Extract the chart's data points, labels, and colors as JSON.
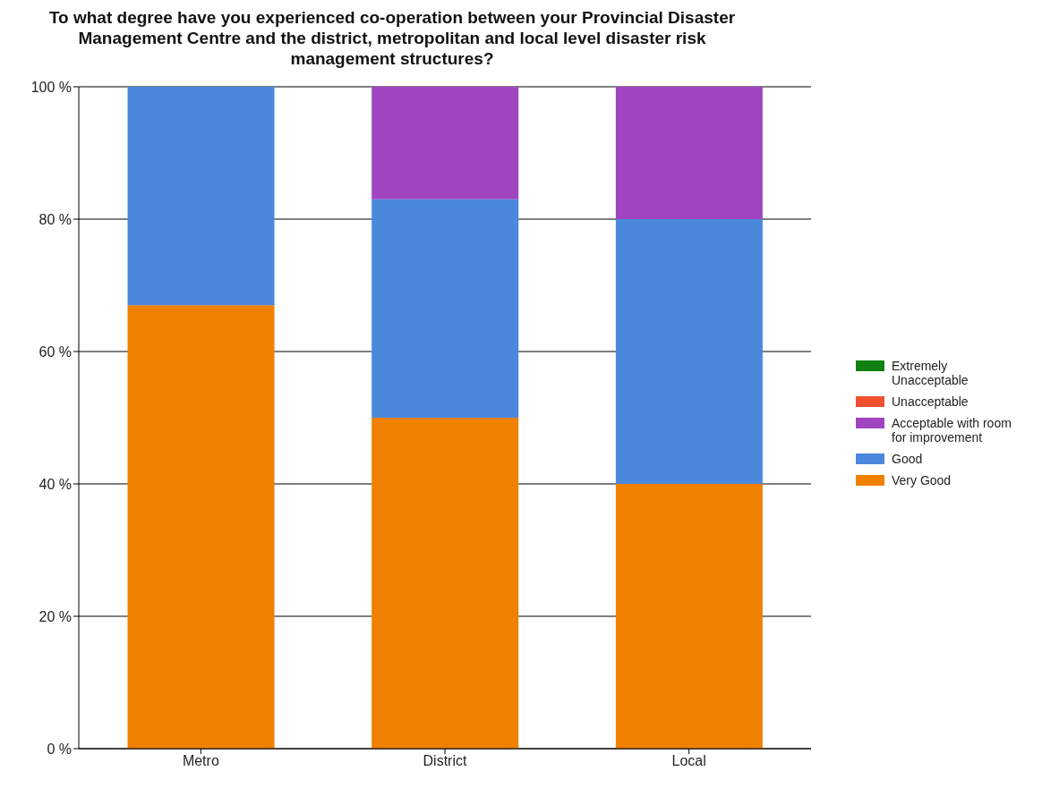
{
  "chart_data": {
    "type": "bar",
    "title": "To what degree have you experienced co-operation between your Provincial Disaster Management Centre and the district, metropolitan and local level disaster risk management structures?",
    "categories": [
      "Metro",
      "District",
      "Local"
    ],
    "stacked": true,
    "ylim": [
      0,
      100
    ],
    "yticks": [
      {
        "value": 0,
        "label": "0 %"
      },
      {
        "value": 20,
        "label": "20 %"
      },
      {
        "value": 40,
        "label": "40 %"
      },
      {
        "value": 60,
        "label": "60 %"
      },
      {
        "value": 80,
        "label": "80 %"
      },
      {
        "value": 100,
        "label": "100 %"
      }
    ],
    "grid": "y",
    "legend": "right",
    "series": [
      {
        "name": "Very Good",
        "color": "#f08000",
        "values": [
          67,
          50,
          40
        ]
      },
      {
        "name": "Good",
        "color": "#4a88dc",
        "values": [
          33,
          33,
          40
        ]
      },
      {
        "name": "Acceptable with room for improvement",
        "color": "#a044c0",
        "values": [
          0,
          17,
          20
        ]
      },
      {
        "name": "Unacceptable",
        "color": "#f05030",
        "values": [
          0,
          0,
          0
        ]
      },
      {
        "name": "Extremely Unacceptable",
        "color": "#108010",
        "values": [
          0,
          0,
          0
        ]
      }
    ]
  }
}
